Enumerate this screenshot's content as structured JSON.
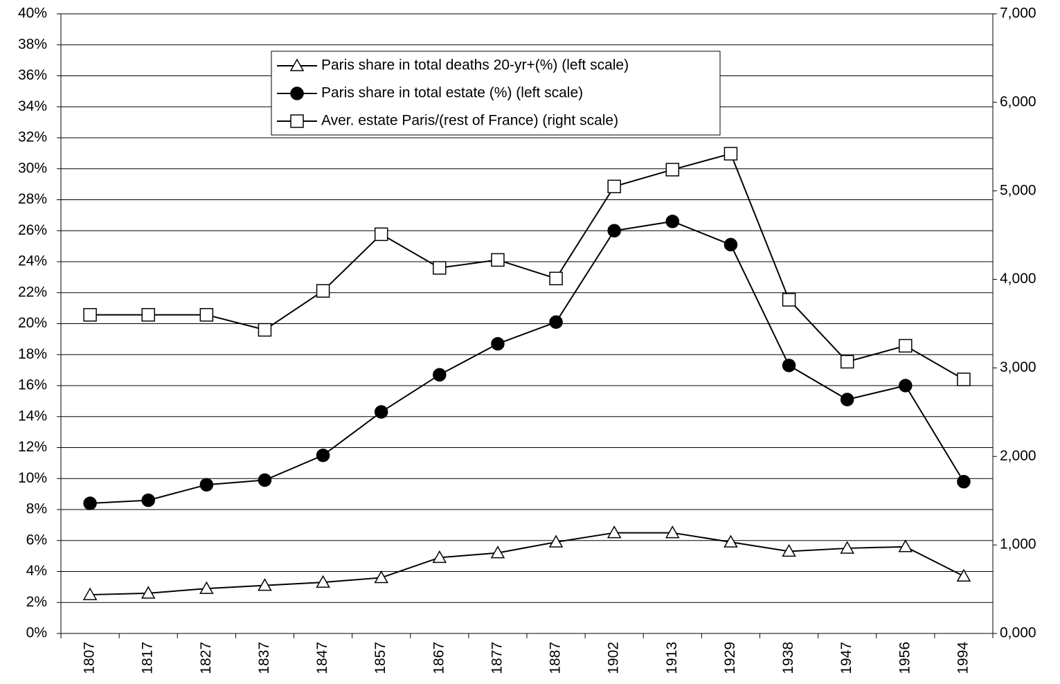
{
  "chart_data": {
    "type": "line",
    "categories": [
      "1807",
      "1817",
      "1827",
      "1837",
      "1847",
      "1857",
      "1867",
      "1877",
      "1887",
      "1902",
      "1913",
      "1929",
      "1938",
      "1947",
      "1956",
      "1994"
    ],
    "series": [
      {
        "name": "Paris share in total deaths 20-yr+(%) (left scale)",
        "color": "#000000",
        "marker": "triangle",
        "marker_fill": "#ffffff",
        "values": [
          2.5,
          2.6,
          2.9,
          3.1,
          3.3,
          3.6,
          4.9,
          5.2,
          5.9,
          6.5,
          6.5,
          5.9,
          5.3,
          5.5,
          5.6,
          3.7
        ]
      },
      {
        "name": "Paris share in total estate (%) (left scale)",
        "color": "#000000",
        "marker": "circle",
        "marker_fill": "#000000",
        "values": [
          8.4,
          8.6,
          9.6,
          9.9,
          11.5,
          14.3,
          16.7,
          18.7,
          20.1,
          26.0,
          26.6,
          25.1,
          17.3,
          15.1,
          16.0,
          9.8
        ]
      },
      {
        "name": "Aver. estate Paris/(rest of France) (right scale)",
        "color": "#000000",
        "marker": "square",
        "marker_fill": "#ffffff",
        "axis": "y2",
        "values": [
          3600,
          3600,
          3600,
          3430,
          3870,
          4510,
          4130,
          4220,
          4010,
          5050,
          5240,
          5420,
          3770,
          3070,
          3250,
          2870
        ]
      }
    ],
    "ylim": [
      0,
      40
    ],
    "yticks": [
      {
        "value": 0,
        "label": "0%"
      },
      {
        "value": 2,
        "label": "2%"
      },
      {
        "value": 4,
        "label": "4%"
      },
      {
        "value": 6,
        "label": "6%"
      },
      {
        "value": 8,
        "label": "8%"
      },
      {
        "value": 10,
        "label": "10%"
      },
      {
        "value": 12,
        "label": "12%"
      },
      {
        "value": 14,
        "label": "14%"
      },
      {
        "value": 16,
        "label": "16%"
      },
      {
        "value": 18,
        "label": "18%"
      },
      {
        "value": 20,
        "label": "20%"
      },
      {
        "value": 22,
        "label": "22%"
      },
      {
        "value": 24,
        "label": "24%"
      },
      {
        "value": 26,
        "label": "26%"
      },
      {
        "value": 28,
        "label": "28%"
      },
      {
        "value": 30,
        "label": "30%"
      },
      {
        "value": 32,
        "label": "32%"
      },
      {
        "value": 34,
        "label": "34%"
      },
      {
        "value": 36,
        "label": "36%"
      },
      {
        "value": 38,
        "label": "38%"
      },
      {
        "value": 40,
        "label": "40%"
      }
    ],
    "y2lim": [
      0,
      7000
    ],
    "y2ticks": [
      {
        "value": 0,
        "label": "0,000"
      },
      {
        "value": 1000,
        "label": "1,000"
      },
      {
        "value": 2000,
        "label": "2,000"
      },
      {
        "value": 3000,
        "label": "3,000"
      },
      {
        "value": 4000,
        "label": "4,000"
      },
      {
        "value": 5000,
        "label": "5,000"
      },
      {
        "value": 6000,
        "label": "6,000"
      },
      {
        "value": 7000,
        "label": "7,000"
      }
    ],
    "grid": true
  }
}
